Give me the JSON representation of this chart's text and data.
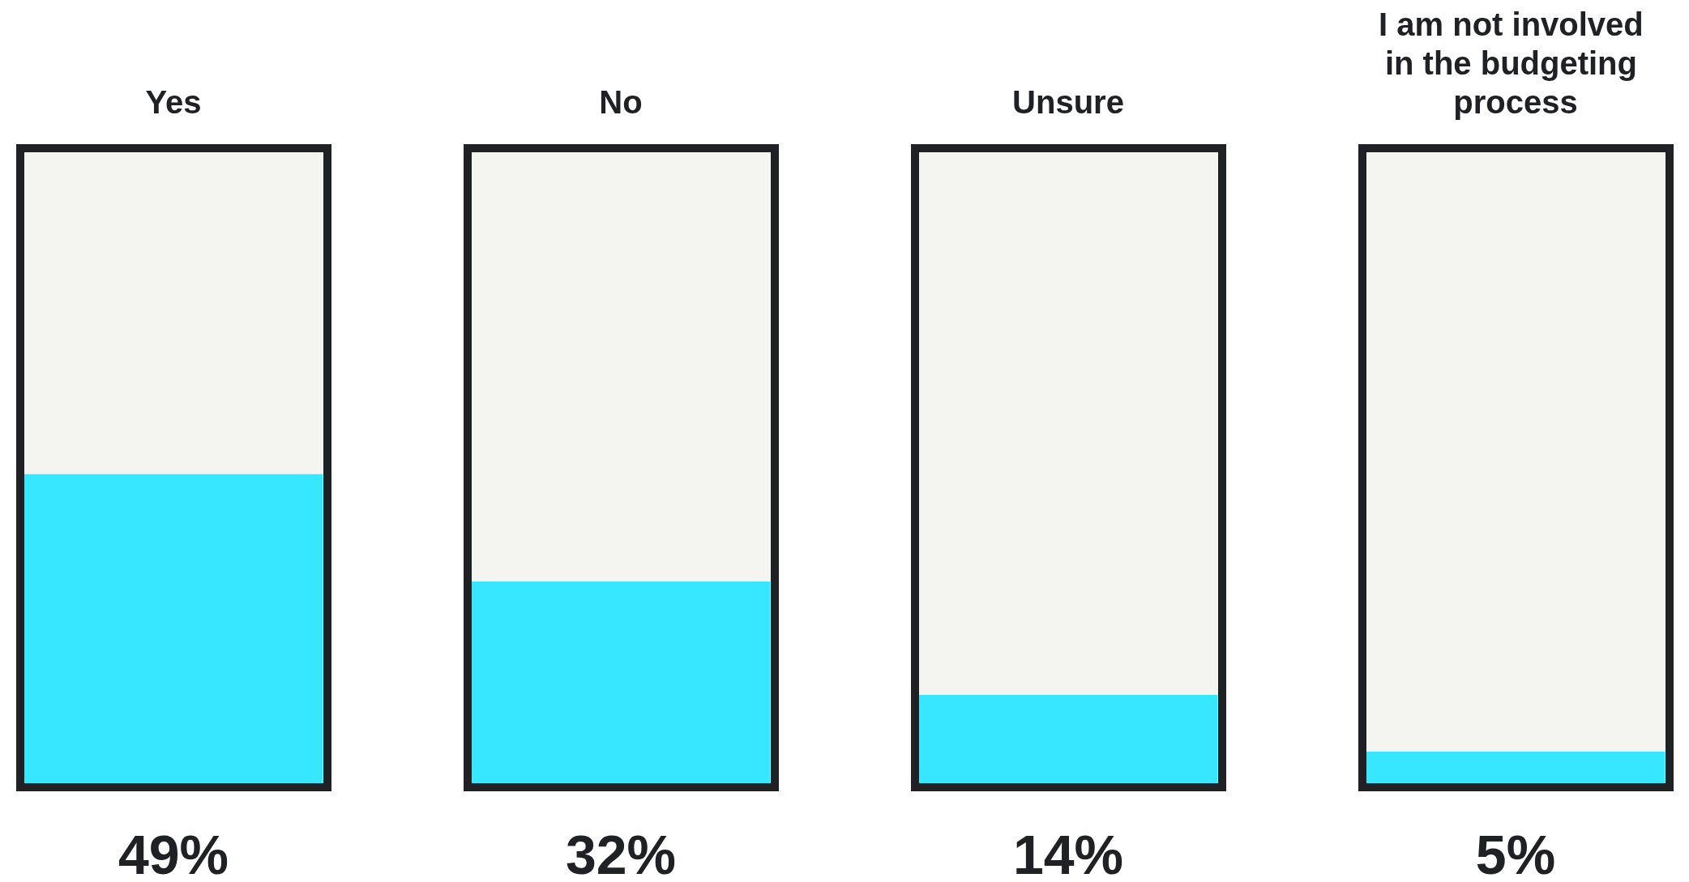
{
  "chart_data": {
    "type": "bar",
    "stacked": true,
    "categories": [
      "Yes",
      "No",
      "Unsure",
      "I am not involved in the budgeting process"
    ],
    "series": [
      {
        "color": "#37e6ff",
        "values": [
          49,
          32,
          14,
          5
        ],
        "value_labels": [
          "49%",
          "32%",
          "14%",
          "5%"
        ]
      },
      {
        "color": "#f4f4f0",
        "values": [
          51,
          68,
          86,
          95
        ]
      }
    ]
  }
}
